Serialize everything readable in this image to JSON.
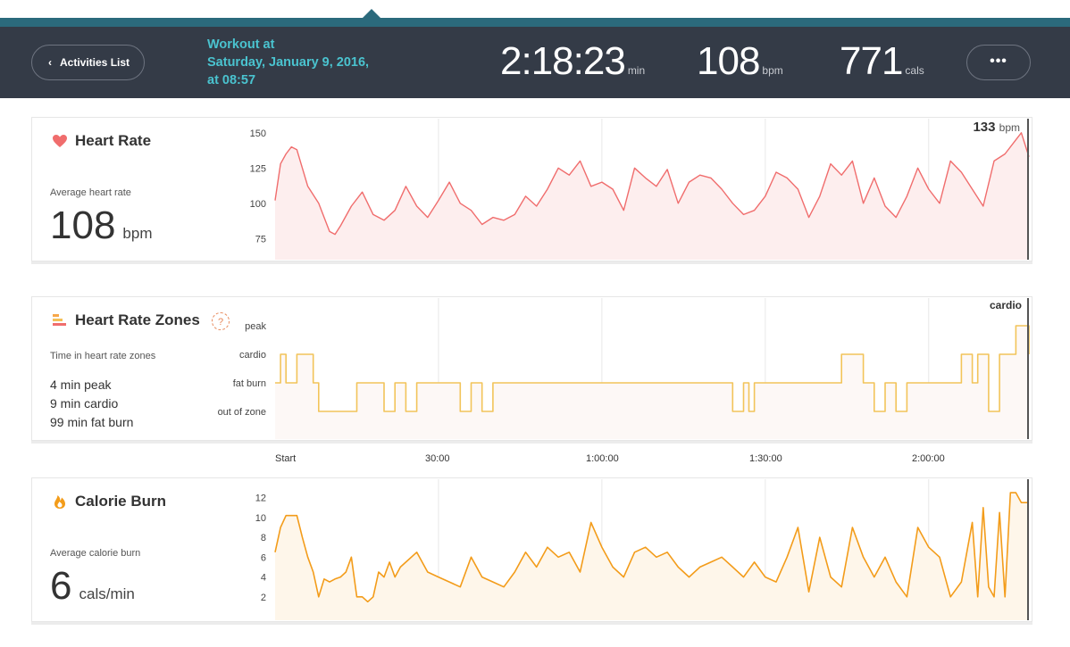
{
  "header": {
    "back_label": "Activities List",
    "back_chevron": "‹",
    "workout_title_line1": "Workout at",
    "workout_title_line2": "Saturday, January 9, 2016,",
    "workout_title_line3": "at 08:57",
    "duration": "2:18:23",
    "duration_unit": "min",
    "heart_rate": "108",
    "heart_rate_unit": "bpm",
    "calories": "771",
    "calories_unit": "cals",
    "more_label": "•••"
  },
  "heart_rate": {
    "title": "Heart Rate",
    "icon": "heart-icon",
    "avg_label": "Average heart rate",
    "avg_value": "108",
    "avg_unit": "bpm",
    "current_value": "133",
    "current_unit": "bpm",
    "color": "#f06d6d"
  },
  "zones": {
    "title": "Heart Rate Zones",
    "icon": "zones-bars-icon",
    "help": "?",
    "caption": "Time in heart rate zones",
    "lines": [
      "4 min peak",
      "9 min cardio",
      "99 min fat burn"
    ],
    "current_zone": "cardio",
    "color": "#f2c45a"
  },
  "calories": {
    "title": "Calorie Burn",
    "icon": "flame-icon",
    "avg_label": "Average calorie burn",
    "avg_value": "6",
    "avg_unit": "cals/min",
    "color": "#f39c1a"
  },
  "x_axis_labels": [
    "Start",
    "30:00",
    "1:00:00",
    "1:30:00",
    "2:00:00"
  ],
  "chart_data": [
    {
      "type": "line",
      "title": "Heart Rate",
      "ylabel": "bpm",
      "y_ticks": [
        150,
        125,
        100,
        75
      ],
      "ylim": [
        60,
        160
      ],
      "x_unit": "minutes",
      "xlim": [
        0,
        138.4
      ],
      "x": [
        0,
        1,
        2,
        3,
        4,
        5,
        6,
        8,
        10,
        11,
        12,
        14,
        16,
        18,
        20,
        22,
        24,
        26,
        28,
        30,
        32,
        34,
        36,
        38,
        40,
        42,
        44,
        46,
        48,
        50,
        52,
        54,
        56,
        58,
        60,
        62,
        64,
        66,
        68,
        70,
        72,
        74,
        76,
        78,
        80,
        82,
        84,
        86,
        88,
        90,
        92,
        94,
        96,
        98,
        100,
        102,
        104,
        106,
        108,
        110,
        112,
        114,
        116,
        118,
        120,
        122,
        124,
        126,
        128,
        130,
        132,
        134,
        136,
        137,
        138.4
      ],
      "values": [
        102,
        128,
        135,
        140,
        138,
        125,
        112,
        100,
        80,
        78,
        84,
        98,
        108,
        92,
        88,
        95,
        112,
        98,
        90,
        102,
        115,
        100,
        95,
        85,
        90,
        88,
        92,
        105,
        98,
        110,
        125,
        120,
        130,
        112,
        115,
        110,
        95,
        125,
        118,
        112,
        124,
        100,
        115,
        120,
        118,
        110,
        100,
        92,
        95,
        105,
        122,
        118,
        110,
        90,
        105,
        128,
        120,
        130,
        100,
        118,
        98,
        90,
        105,
        125,
        110,
        100,
        130,
        122,
        110,
        98,
        130,
        135,
        145,
        150,
        133
      ]
    },
    {
      "type": "line",
      "title": "Heart Rate Zones",
      "y_ticks": [
        "peak",
        "cardio",
        "fat burn",
        "out of zone"
      ],
      "x_unit": "minutes",
      "xlim": [
        0,
        138.4
      ],
      "x": [
        0,
        1,
        2,
        4,
        7,
        8,
        10,
        14,
        15,
        18,
        20,
        22,
        24,
        26,
        28,
        30,
        34,
        36,
        38,
        40,
        42,
        46,
        48,
        50,
        52,
        55,
        58,
        60,
        64,
        66,
        70,
        72,
        74,
        84,
        86,
        87,
        88,
        90,
        96,
        102,
        104,
        108,
        110,
        112,
        114,
        116,
        118,
        120,
        126,
        128,
        129,
        131,
        133,
        136,
        137,
        138.4
      ],
      "values": [
        "fat burn",
        "cardio",
        "fat burn",
        "cardio",
        "fat burn",
        "out of zone",
        "out of zone",
        "out of zone",
        "fat burn",
        "fat burn",
        "out of zone",
        "fat burn",
        "out of zone",
        "fat burn",
        "fat burn",
        "fat burn",
        "out of zone",
        "fat burn",
        "out of zone",
        "fat burn",
        "fat burn",
        "fat burn",
        "fat burn",
        "fat burn",
        "fat burn",
        "fat burn",
        "fat burn",
        "fat burn",
        "fat burn",
        "fat burn",
        "fat burn",
        "fat burn",
        "fat burn",
        "out of zone",
        "fat burn",
        "out of zone",
        "fat burn",
        "fat burn",
        "fat burn",
        "fat burn",
        "cardio",
        "fat burn",
        "out of zone",
        "fat burn",
        "out of zone",
        "fat burn",
        "fat burn",
        "fat burn",
        "cardio",
        "fat burn",
        "cardio",
        "out of zone",
        "cardio",
        "peak",
        "peak",
        "cardio"
      ]
    },
    {
      "type": "area",
      "title": "Calorie Burn",
      "ylabel": "cals/min",
      "y_ticks": [
        12,
        10,
        8,
        6,
        4,
        2
      ],
      "ylim": [
        0,
        13
      ],
      "x_unit": "minutes",
      "xlim": [
        0,
        138.4
      ],
      "x": [
        0,
        1,
        2,
        3,
        4,
        5,
        6,
        7,
        8,
        9,
        10,
        11,
        12,
        13,
        14,
        15,
        16,
        17,
        18,
        19,
        20,
        21,
        22,
        23,
        24,
        26,
        28,
        30,
        32,
        34,
        36,
        38,
        40,
        42,
        44,
        46,
        48,
        50,
        52,
        54,
        56,
        58,
        60,
        62,
        64,
        66,
        68,
        70,
        72,
        74,
        76,
        78,
        80,
        82,
        84,
        86,
        88,
        90,
        92,
        94,
        96,
        98,
        100,
        102,
        104,
        106,
        108,
        110,
        112,
        114,
        116,
        118,
        120,
        122,
        124,
        126,
        128,
        129,
        130,
        131,
        132,
        133,
        134,
        135,
        136,
        137,
        138.4
      ],
      "values": [
        6.5,
        9,
        10.2,
        10.2,
        10.2,
        8,
        6,
        4.5,
        2,
        3.8,
        3.5,
        3.8,
        4,
        4.5,
        6,
        2,
        2,
        1.5,
        2,
        4.5,
        4,
        5.5,
        4,
        5,
        5.5,
        6.5,
        4.5,
        4,
        3.5,
        3,
        6,
        4,
        3.5,
        3,
        4.5,
        6.5,
        5,
        7,
        6,
        6.5,
        4.5,
        9.5,
        7,
        5,
        4,
        6.5,
        7,
        6,
        6.5,
        5,
        4,
        5,
        5.5,
        6,
        5,
        4,
        5.5,
        4,
        3.5,
        6,
        9,
        2.5,
        8,
        4,
        3,
        9,
        6,
        4,
        6,
        3.5,
        2,
        9,
        7,
        6,
        2,
        3.5,
        9.5,
        2,
        11,
        3,
        2,
        10.5,
        2,
        12.5,
        12.5,
        11.5,
        11.5
      ]
    }
  ]
}
